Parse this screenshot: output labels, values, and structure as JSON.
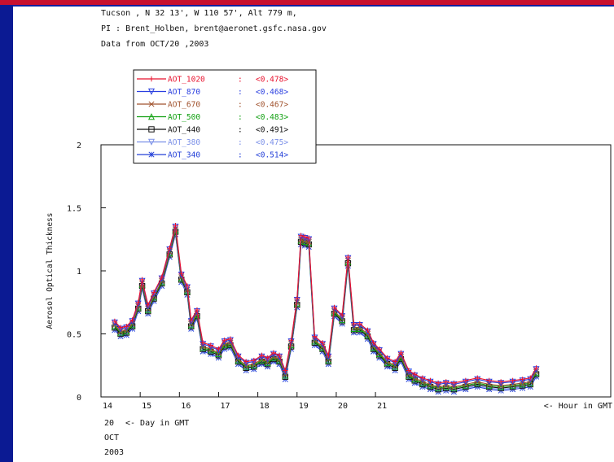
{
  "header": {
    "line1": "Tucson , N 32 13', W 110 57', Alt 779 m,",
    "line2": "PI : Brent_Holben, brent@aeronet.gsfc.nasa.gov",
    "line3": "Data from OCT/20 ,2003"
  },
  "chart_data": {
    "type": "line",
    "title": "",
    "xlabel": "<- Hour in GMT",
    "ylabel": "Aerosol Optical Thickness",
    "xlim": [
      14,
      27
    ],
    "ylim": [
      0,
      2
    ],
    "y_ticks": [
      "0",
      "0.5",
      "1",
      "1.5",
      "2"
    ],
    "x_ticks": [
      "14",
      "15",
      "16",
      "17",
      "18",
      "19",
      "20",
      "21"
    ],
    "x_tick_values": [
      14,
      15,
      16,
      17,
      18,
      19,
      20,
      21
    ],
    "day_label": "20",
    "day_caption": "<- Day in GMT",
    "month_label": "OCT",
    "year_label": "2003",
    "grid": false,
    "legend_position": "top-left, inside",
    "series": [
      {
        "name": "AOT_1020",
        "mean": "<0.478>",
        "color": "#e8112d",
        "marker": "plus",
        "offset": 0.03
      },
      {
        "name": "AOT_870",
        "mean": "<0.468>",
        "color": "#2a3fe0",
        "marker": "triangle-down",
        "offset": 0.02
      },
      {
        "name": "AOT_670",
        "mean": "<0.467>",
        "color": "#a0522d",
        "marker": "x",
        "offset": 0.0
      },
      {
        "name": "AOT_500",
        "mean": "<0.483>",
        "color": "#11a011",
        "marker": "triangle-up",
        "offset": -0.01
      },
      {
        "name": "AOT_440",
        "mean": "<0.491>",
        "color": "#111111",
        "marker": "square",
        "offset": -0.02
      },
      {
        "name": "AOT_380",
        "mean": "<0.475>",
        "color": "#7a8fe8",
        "marker": "triangle-down",
        "offset": -0.03
      },
      {
        "name": "AOT_340",
        "mean": "<0.514>",
        "color": "#2440d8",
        "marker": "asterisk",
        "offset": -0.04
      }
    ],
    "x": [
      14.35,
      14.5,
      14.65,
      14.8,
      14.95,
      15.05,
      15.2,
      15.35,
      15.55,
      15.75,
      15.9,
      16.05,
      16.2,
      16.3,
      16.45,
      16.6,
      16.8,
      17.0,
      17.15,
      17.3,
      17.5,
      17.7,
      17.9,
      18.1,
      18.25,
      18.4,
      18.55,
      18.7,
      18.85,
      19.0,
      19.1,
      19.2,
      19.3,
      19.45,
      19.65,
      19.8,
      19.95,
      20.15,
      20.3,
      20.45,
      20.6,
      20.8,
      20.95,
      21.1,
      21.3,
      21.5,
      21.65,
      21.85,
      22.0,
      22.2,
      22.4,
      22.6,
      22.8,
      23.0,
      23.3,
      23.6,
      23.9,
      24.2,
      24.5,
      24.75,
      24.95,
      25.1
    ],
    "values": [
      0.57,
      0.52,
      0.53,
      0.58,
      0.72,
      0.9,
      0.7,
      0.8,
      0.92,
      1.15,
      1.33,
      0.95,
      0.85,
      0.58,
      0.66,
      0.4,
      0.38,
      0.35,
      0.42,
      0.43,
      0.3,
      0.25,
      0.26,
      0.3,
      0.28,
      0.32,
      0.3,
      0.18,
      0.42,
      0.75,
      1.25,
      1.24,
      1.23,
      0.45,
      0.4,
      0.3,
      0.68,
      0.62,
      1.08,
      0.55,
      0.55,
      0.5,
      0.4,
      0.35,
      0.28,
      0.25,
      0.32,
      0.18,
      0.15,
      0.12,
      0.1,
      0.08,
      0.09,
      0.08,
      0.1,
      0.12,
      0.1,
      0.09,
      0.1,
      0.11,
      0.12,
      0.2
    ]
  }
}
